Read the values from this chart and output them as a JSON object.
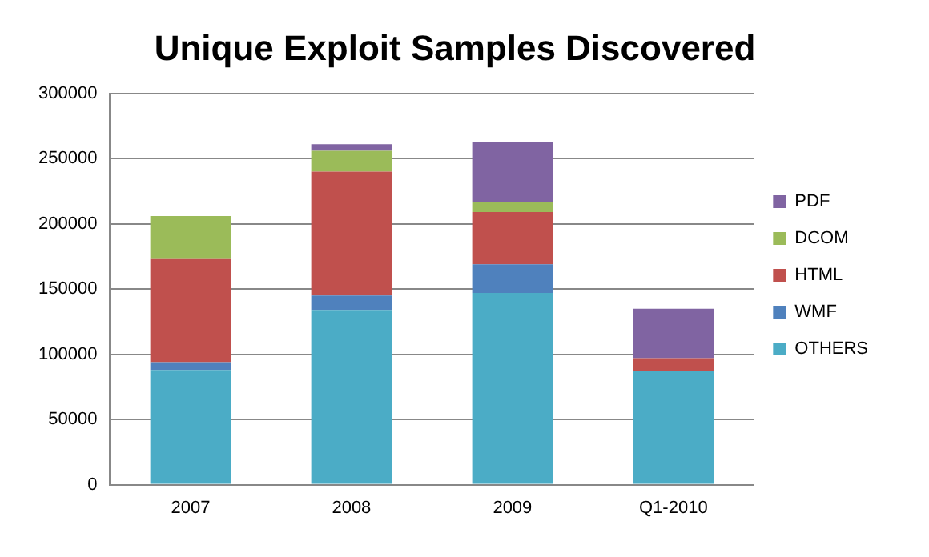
{
  "chart_data": {
    "type": "bar",
    "title": "Unique Exploit Samples Discovered",
    "categories": [
      "2007",
      "2008",
      "2009",
      "Q1-2010"
    ],
    "stacked": true,
    "series": [
      {
        "name": "OTHERS",
        "color": "#4bacc6",
        "values": [
          88000,
          134000,
          147000,
          87000
        ]
      },
      {
        "name": "WMF",
        "color": "#4f81bd",
        "values": [
          6000,
          11000,
          22000,
          0
        ]
      },
      {
        "name": "HTML",
        "color": "#c0504d",
        "values": [
          79000,
          95000,
          40000,
          10000
        ]
      },
      {
        "name": "DCOM",
        "color": "#9bbb59",
        "values": [
          33000,
          16000,
          8000,
          0
        ]
      },
      {
        "name": "PDF",
        "color": "#8064a2",
        "values": [
          0,
          5000,
          46000,
          38000
        ]
      }
    ],
    "ylim": [
      0,
      300000
    ],
    "yticks": [
      0,
      50000,
      100000,
      150000,
      200000,
      250000,
      300000
    ],
    "grid": "y",
    "legend": "right"
  }
}
